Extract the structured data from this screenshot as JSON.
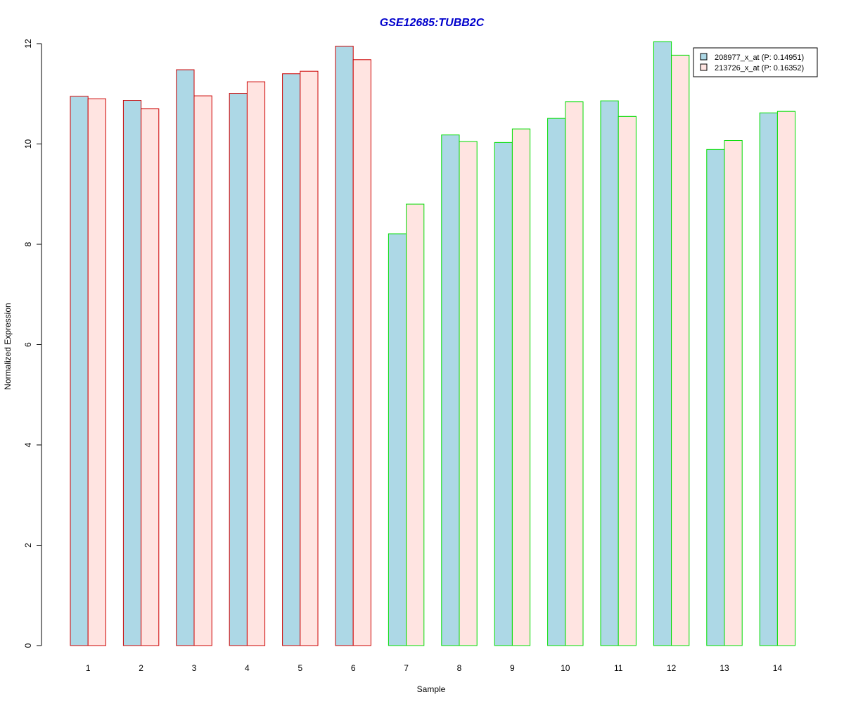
{
  "chart_data": {
    "type": "bar",
    "title": "GSE12685:TUBB2C",
    "title_color": "#0000cc",
    "xlabel": "Sample",
    "ylabel": "Normalized Expression",
    "ylim": [
      0,
      12
    ],
    "yticks": [
      0,
      2,
      4,
      6,
      8,
      10,
      12
    ],
    "categories": [
      "1",
      "2",
      "3",
      "4",
      "5",
      "6",
      "7",
      "8",
      "9",
      "10",
      "11",
      "12",
      "13",
      "14"
    ],
    "group_border_colors": [
      "#cc0000",
      "#cc0000",
      "#cc0000",
      "#cc0000",
      "#cc0000",
      "#cc0000",
      "#00dd00",
      "#00dd00",
      "#00dd00",
      "#00dd00",
      "#00dd00",
      "#00dd00",
      "#00dd00",
      "#00dd00"
    ],
    "series": [
      {
        "name": "208977_x_at (P: 0.14951)",
        "fill": "#add8e6",
        "values": [
          10.95,
          10.87,
          11.48,
          11.01,
          11.4,
          11.95,
          8.21,
          10.18,
          10.03,
          10.51,
          10.86,
          12.04,
          9.89,
          10.62
        ]
      },
      {
        "name": "213726_x_at (P: 0.16352)",
        "fill": "#ffe4e1",
        "values": [
          10.9,
          10.7,
          10.96,
          11.24,
          11.45,
          11.68,
          8.8,
          10.05,
          10.3,
          10.84,
          10.55,
          11.77,
          10.07,
          10.65
        ]
      }
    ],
    "legend_position": "top-right",
    "grid": false
  }
}
